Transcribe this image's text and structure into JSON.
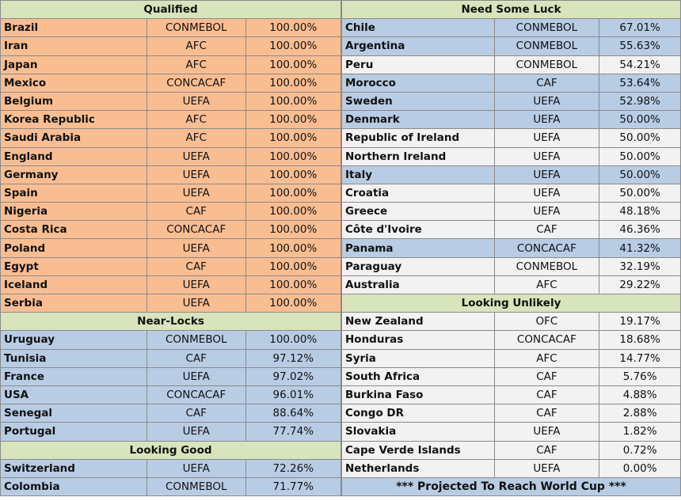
{
  "left": {
    "qualified": {
      "title": "Qualified",
      "rows": [
        {
          "team": "Brazil",
          "conf": "CONMEBOL",
          "pct": "100.00%"
        },
        {
          "team": "Iran",
          "conf": "AFC",
          "pct": "100.00%"
        },
        {
          "team": "Japan",
          "conf": "AFC",
          "pct": "100.00%"
        },
        {
          "team": "Mexico",
          "conf": "CONCACAF",
          "pct": "100.00%"
        },
        {
          "team": "Belgium",
          "conf": "UEFA",
          "pct": "100.00%"
        },
        {
          "team": "Korea Republic",
          "conf": "AFC",
          "pct": "100.00%"
        },
        {
          "team": "Saudi Arabia",
          "conf": "AFC",
          "pct": "100.00%"
        },
        {
          "team": "England",
          "conf": "UEFA",
          "pct": "100.00%"
        },
        {
          "team": "Germany",
          "conf": "UEFA",
          "pct": "100.00%"
        },
        {
          "team": "Spain",
          "conf": "UEFA",
          "pct": "100.00%"
        },
        {
          "team": "Nigeria",
          "conf": "CAF",
          "pct": "100.00%"
        },
        {
          "team": "Costa Rica",
          "conf": "CONCACAF",
          "pct": "100.00%"
        },
        {
          "team": "Poland",
          "conf": "UEFA",
          "pct": "100.00%"
        },
        {
          "team": "Egypt",
          "conf": "CAF",
          "pct": "100.00%"
        },
        {
          "team": "Iceland",
          "conf": "UEFA",
          "pct": "100.00%"
        },
        {
          "team": "Serbia",
          "conf": "UEFA",
          "pct": "100.00%"
        }
      ]
    },
    "near_locks": {
      "title": "Near-Locks",
      "rows": [
        {
          "team": "Uruguay",
          "conf": "CONMEBOL",
          "pct": "100.00%"
        },
        {
          "team": "Tunisia",
          "conf": "CAF",
          "pct": "97.12%"
        },
        {
          "team": "France",
          "conf": "UEFA",
          "pct": "97.02%"
        },
        {
          "team": "USA",
          "conf": "CONCACAF",
          "pct": "96.01%"
        },
        {
          "team": "Senegal",
          "conf": "CAF",
          "pct": "88.64%"
        },
        {
          "team": "Portugal",
          "conf": "UEFA",
          "pct": "77.74%"
        }
      ]
    },
    "looking_good": {
      "title": "Looking Good",
      "rows": [
        {
          "team": "Switzerland",
          "conf": "UEFA",
          "pct": "72.26%"
        },
        {
          "team": "Colombia",
          "conf": "CONMEBOL",
          "pct": "71.77%"
        }
      ]
    }
  },
  "right": {
    "need_luck": {
      "title": "Need Some Luck",
      "rows": [
        {
          "team": "Chile",
          "conf": "CONMEBOL",
          "pct": "67.01%",
          "shade": "blue"
        },
        {
          "team": "Argentina",
          "conf": "CONMEBOL",
          "pct": "55.63%",
          "shade": "blue"
        },
        {
          "team": "Peru",
          "conf": "CONMEBOL",
          "pct": "54.21%",
          "shade": "white"
        },
        {
          "team": "Morocco",
          "conf": "CAF",
          "pct": "53.64%",
          "shade": "blue"
        },
        {
          "team": "Sweden",
          "conf": "UEFA",
          "pct": "52.98%",
          "shade": "blue"
        },
        {
          "team": "Denmark",
          "conf": "UEFA",
          "pct": "50.00%",
          "shade": "blue"
        },
        {
          "team": "Republic of Ireland",
          "conf": "UEFA",
          "pct": "50.00%",
          "shade": "white"
        },
        {
          "team": "Northern Ireland",
          "conf": "UEFA",
          "pct": "50.00%",
          "shade": "white"
        },
        {
          "team": "Italy",
          "conf": "UEFA",
          "pct": "50.00%",
          "shade": "blue"
        },
        {
          "team": "Croatia",
          "conf": "UEFA",
          "pct": "50.00%",
          "shade": "white"
        },
        {
          "team": "Greece",
          "conf": "UEFA",
          "pct": "48.18%",
          "shade": "white"
        },
        {
          "team": "Côte d'Ivoire",
          "conf": "CAF",
          "pct": "46.36%",
          "shade": "white"
        },
        {
          "team": "Panama",
          "conf": "CONCACAF",
          "pct": "41.32%",
          "shade": "blue"
        },
        {
          "team": "Paraguay",
          "conf": "CONMEBOL",
          "pct": "32.19%",
          "shade": "white"
        },
        {
          "team": "Australia",
          "conf": "AFC",
          "pct": "29.22%",
          "shade": "white"
        }
      ]
    },
    "looking_unlikely": {
      "title": "Looking Unlikely",
      "rows": [
        {
          "team": "New Zealand",
          "conf": "OFC",
          "pct": "19.17%"
        },
        {
          "team": "Honduras",
          "conf": "CONCACAF",
          "pct": "18.68%"
        },
        {
          "team": "Syria",
          "conf": "AFC",
          "pct": "14.77%"
        },
        {
          "team": "South Africa",
          "conf": "CAF",
          "pct": "5.76%"
        },
        {
          "team": "Burkina Faso",
          "conf": "CAF",
          "pct": "4.88%"
        },
        {
          "team": "Congo DR",
          "conf": "CAF",
          "pct": "2.88%"
        },
        {
          "team": "Slovakia",
          "conf": "UEFA",
          "pct": "1.82%"
        },
        {
          "team": "Cape Verde Islands",
          "conf": "CAF",
          "pct": "0.72%"
        },
        {
          "team": "Netherlands",
          "conf": "UEFA",
          "pct": "0.00%"
        }
      ]
    },
    "footer": "*** Projected To Reach World Cup ***"
  },
  "colors": {
    "header": "#d8e4bc",
    "qualified_fill": "#f9bd92",
    "blue_fill": "#b8cce4",
    "white_fill": "#f2f2f2",
    "border": "#8a8a8a"
  }
}
